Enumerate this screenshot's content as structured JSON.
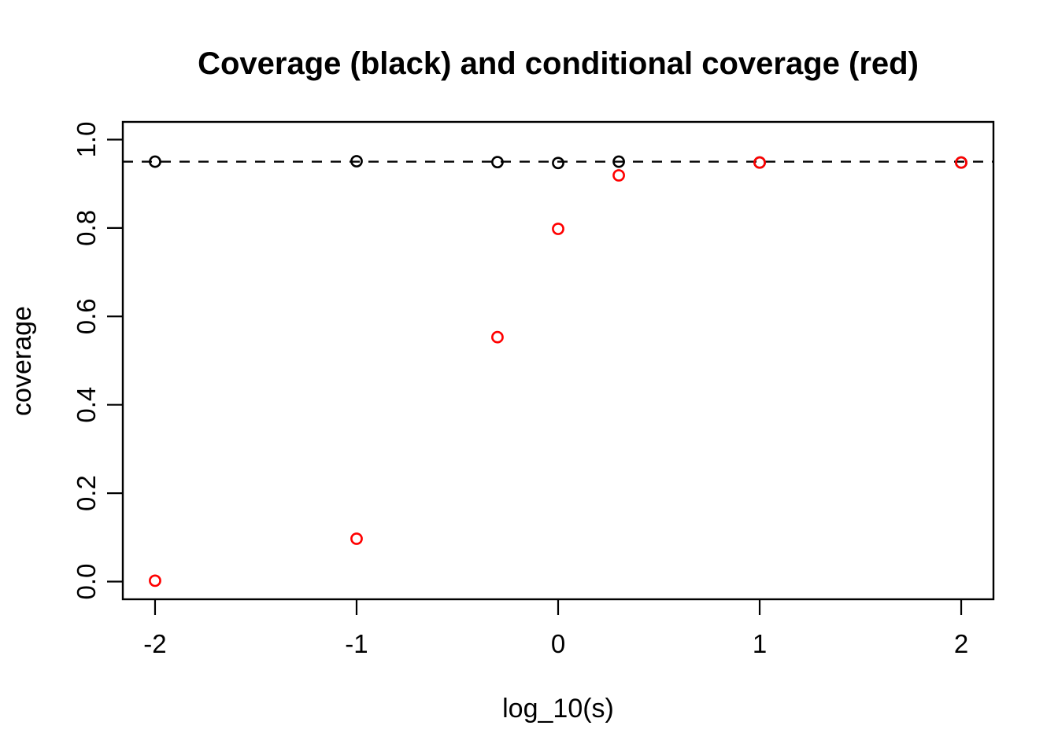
{
  "chart_data": {
    "type": "scatter",
    "title": "Coverage (black) and conditional coverage (red)",
    "xlabel": "log_10(s)",
    "ylabel": "coverage",
    "xlim": [
      -2.16,
      2.16
    ],
    "ylim": [
      -0.04,
      1.04
    ],
    "grid": false,
    "legend": "none (colors explained in title)",
    "x_ticks": [
      -2,
      -1,
      0,
      1,
      2
    ],
    "x_tick_labels": [
      "-2",
      "-1",
      "0",
      "1",
      "2"
    ],
    "y_ticks": [
      0.0,
      0.2,
      0.4,
      0.6,
      0.8,
      1.0
    ],
    "y_tick_labels": [
      "0.0",
      "0.2",
      "0.4",
      "0.6",
      "0.8",
      "1.0"
    ],
    "reference_line": {
      "y": 0.95,
      "style": "dashed",
      "color": "#000000"
    },
    "marker": "open-circle",
    "series": [
      {
        "name": "coverage",
        "color": "#000000",
        "x": [
          -2,
          -1,
          -0.301,
          0,
          0.301,
          1,
          2
        ],
        "y": [
          0.95,
          0.951,
          0.949,
          0.947,
          0.95,
          0.948,
          0.948
        ]
      },
      {
        "name": "conditional coverage",
        "color": "#ff0000",
        "x": [
          -2,
          -1,
          -0.301,
          0,
          0.301,
          1,
          2
        ],
        "y": [
          0.002,
          0.097,
          0.553,
          0.798,
          0.919,
          0.948,
          0.948
        ]
      }
    ],
    "colors": {
      "background": "#ffffff",
      "axis": "#000000",
      "series_black": "#000000",
      "series_red": "#ff0000"
    }
  }
}
